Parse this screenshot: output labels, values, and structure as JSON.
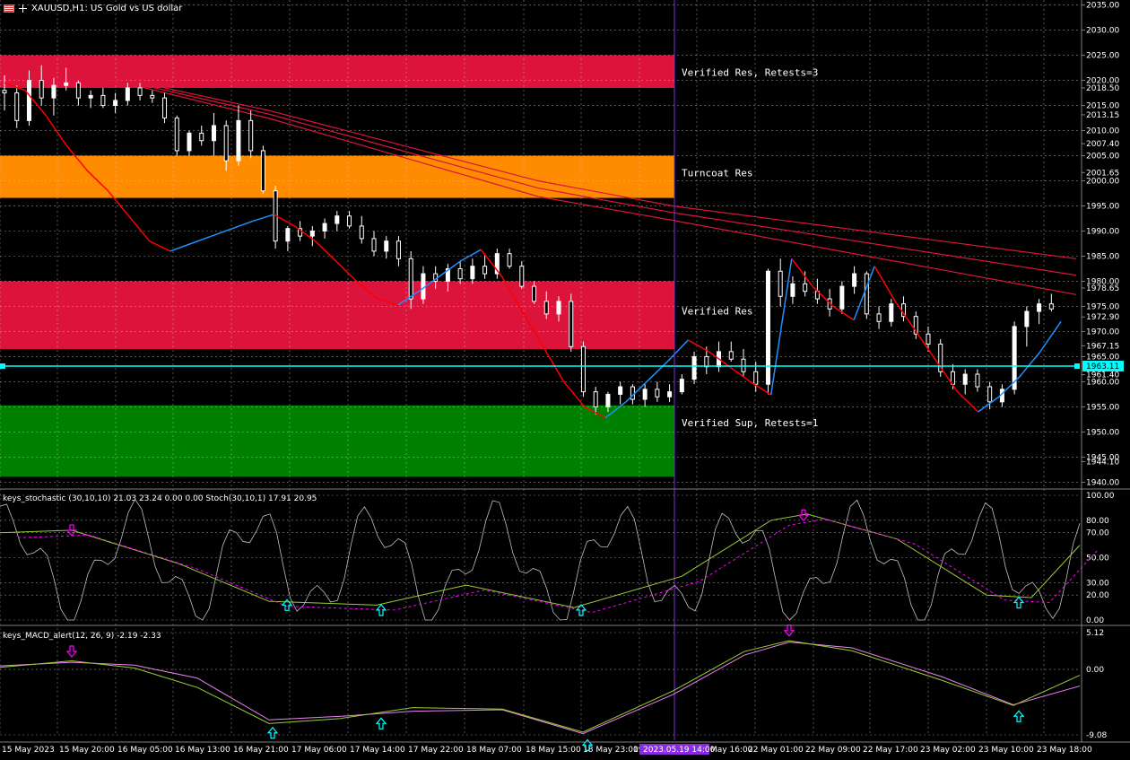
{
  "header": {
    "title": "XAUUSD,H1:  US Gold vs US dollar",
    "symbol_icon": "flag-icon",
    "cross_icon": "crosshair-icon"
  },
  "zones": [
    {
      "label": "Verified Res, Retests=3",
      "color": "#dc143c",
      "top": 2025.0,
      "bottom": 2018.5
    },
    {
      "label": "Turncoat Res",
      "color": "#ff8c00",
      "top": 2005.0,
      "bottom": 1996.6
    },
    {
      "label": "Verified Res",
      "color": "#dc143c",
      "top": 1980.0,
      "bottom": 1966.5
    },
    {
      "label": "Verified Sup, Retests=1",
      "color": "#008000",
      "top": 1955.3,
      "bottom": 1941.1
    }
  ],
  "price_axis": {
    "ticks": [
      "2035.00",
      "2030.00",
      "2025.00",
      "2020.00",
      "2018.50",
      "2015.00",
      "2013.15",
      "2010.00",
      "2007.40",
      "2005.00",
      "2001.65",
      "2000.00",
      "1995.00",
      "1990.00",
      "1985.00",
      "1980.00",
      "1978.65",
      "1975.00",
      "1972.90",
      "1970.00",
      "1967.15",
      "1965.00",
      "1961.40",
      "1960.00",
      "1955.00",
      "1950.00",
      "1945.00",
      "1944.10",
      "1940.00"
    ],
    "current_price": "1963.11",
    "current_price_value": 1963.11,
    "range": [
      1939,
      2036
    ]
  },
  "stoch_panel": {
    "title": "keys_stochastic (30,10,10) 21.03 23.24 0.00 0.00 Stoch(30,10,1) 17.91 20.95",
    "ticks": [
      "100.00",
      "80.00",
      "70.00",
      "50.00",
      "30.00",
      "20.00",
      "0.00"
    ],
    "range": [
      0,
      100
    ]
  },
  "macd_panel": {
    "title": "keys_MACD_alert(12, 26, 9) -2.19 -2.33",
    "ticks": [
      "5.12",
      "0.00",
      "-9.08"
    ],
    "range": [
      -9.08,
      5.12
    ]
  },
  "time_axis": {
    "labels": [
      "15 May 2023",
      "15 May 20:00",
      "16 May 05:00",
      "16 May 13:00",
      "16 May 21:00",
      "17 May 06:00",
      "17 May 14:00",
      "17 May 22:00",
      "18 May 07:00",
      "18 May 15:00",
      "18 May 23:00",
      "19",
      "2023.05.19 14:00",
      "May 16:00",
      "22 May 01:00",
      "22 May 09:00",
      "22 May 17:00",
      "23 May 02:00",
      "23 May 10:00",
      "23 May 18:00"
    ],
    "crosshair_label": "2023.05.19 14:00"
  },
  "colors": {
    "background": "#000000",
    "grid": "#c8c8c8",
    "candle_up": "#ffffff",
    "candle_down": "#ffffff",
    "zigzag_down": "#ff0000",
    "zigzag_up": "#1e90ff",
    "moving_average": "#dc143c",
    "current_price_line": "#00ffff",
    "crosshair": "#8a2be2",
    "stoch_main": "#c0c0c0",
    "stoch_signal": "#9acd32",
    "stoch_dotted": "#ff00ff",
    "arrow_up": "#00ffff",
    "arrow_down": "#ff00ff"
  },
  "zigzag_points": [
    [
      0,
      2019.5
    ],
    [
      1,
      2018
    ],
    [
      2,
      2013
    ],
    [
      3,
      2007
    ],
    [
      4,
      2002
    ],
    [
      5,
      1998
    ],
    [
      6,
      1993
    ],
    [
      7,
      1988
    ],
    [
      8,
      1986
    ],
    [
      9,
      1987.5
    ],
    [
      10,
      1989
    ],
    [
      11,
      1990.5
    ],
    [
      12,
      1992
    ],
    [
      13,
      1993.3
    ],
    [
      14,
      1991
    ],
    [
      15,
      1988
    ],
    [
      16,
      1984
    ],
    [
      17,
      1980
    ],
    [
      18,
      1976.5
    ],
    [
      19,
      1975.3
    ],
    [
      20,
      1978
    ],
    [
      21,
      1981
    ],
    [
      22,
      1984
    ],
    [
      23,
      1986.3
    ],
    [
      24,
      1981
    ],
    [
      25,
      1974
    ],
    [
      26,
      1967
    ],
    [
      27,
      1960
    ],
    [
      28,
      1955
    ],
    [
      29,
      1952.8
    ],
    [
      30,
      1956
    ],
    [
      31,
      1960
    ],
    [
      32,
      1964
    ],
    [
      33,
      1968.3
    ],
    [
      34,
      1966
    ],
    [
      35,
      1963
    ],
    [
      36,
      1960
    ],
    [
      37,
      1957.4
    ],
    [
      38,
      1984.5
    ],
    [
      39,
      1979
    ],
    [
      40,
      1975
    ],
    [
      41,
      1972.3
    ],
    [
      42,
      1983
    ],
    [
      43,
      1976
    ],
    [
      44,
      1970
    ],
    [
      45,
      1964
    ],
    [
      46,
      1958
    ],
    [
      47,
      1954
    ],
    [
      48,
      1957
    ],
    [
      49,
      1961
    ],
    [
      50,
      1966
    ],
    [
      51,
      1972
    ]
  ],
  "candles": [
    [
      2018.0,
      2021.0,
      2014.0,
      2017.5
    ],
    [
      2017.5,
      2019.0,
      2010.5,
      2012.0
    ],
    [
      2012.0,
      2022.0,
      2011.0,
      2020.0
    ],
    [
      2020.0,
      2023.0,
      2015.0,
      2016.5
    ],
    [
      2016.5,
      2020.5,
      2013.0,
      2019.0
    ],
    [
      2019.0,
      2022.5,
      2018.0,
      2019.5
    ],
    [
      2019.5,
      2020.0,
      2015.0,
      2016.5
    ],
    [
      2016.5,
      2018.0,
      2014.5,
      2017.0
    ],
    [
      2017.0,
      2018.5,
      2014.5,
      2015.0
    ],
    [
      2015.0,
      2017.5,
      2013.5,
      2016.0
    ],
    [
      2016.0,
      2019.5,
      2015.0,
      2018.5
    ],
    [
      2018.5,
      2019.5,
      2016.0,
      2017.0
    ],
    [
      2017.0,
      2018.0,
      2015.5,
      2016.5
    ],
    [
      2016.5,
      2017.5,
      2011.5,
      2012.5
    ],
    [
      2012.5,
      2013.0,
      2005.0,
      2006.0
    ],
    [
      2006.0,
      2010.0,
      2005.0,
      2009.5
    ],
    [
      2009.5,
      2011.0,
      2007.0,
      2008.0
    ],
    [
      2008.0,
      2013.5,
      2005.0,
      2011.0
    ],
    [
      2011.0,
      2012.0,
      2002.0,
      2004.0
    ],
    [
      2004.0,
      2015.0,
      2003.0,
      2012.0
    ],
    [
      2012.0,
      2014.0,
      2004.5,
      2006.0
    ],
    [
      2006.0,
      2007.0,
      1997.5,
      1998.0
    ],
    [
      1998.0,
      1999.0,
      1986.5,
      1988.0
    ],
    [
      1988.0,
      1991.0,
      1986.0,
      1990.5
    ],
    [
      1990.5,
      1992.0,
      1988.0,
      1989.0
    ],
    [
      1989.0,
      1991.0,
      1987.0,
      1990.0
    ],
    [
      1990.0,
      1992.5,
      1988.5,
      1991.5
    ],
    [
      1991.5,
      1994.0,
      1990.0,
      1993.0
    ],
    [
      1993.0,
      1994.0,
      1990.5,
      1991.0
    ],
    [
      1991.0,
      1993.0,
      1987.5,
      1988.5
    ],
    [
      1988.5,
      1990.0,
      1985.0,
      1986.0
    ],
    [
      1986.0,
      1989.0,
      1984.5,
      1988.0
    ],
    [
      1988.0,
      1989.0,
      1983.0,
      1984.5
    ],
    [
      1984.5,
      1986.0,
      1974.5,
      1976.5
    ],
    [
      1976.5,
      1983.0,
      1975.5,
      1981.5
    ],
    [
      1981.5,
      1983.0,
      1978.5,
      1980.0
    ],
    [
      1980.0,
      1983.5,
      1978.0,
      1982.5
    ],
    [
      1982.5,
      1984.0,
      1979.5,
      1980.5
    ],
    [
      1980.5,
      1984.5,
      1979.5,
      1983.0
    ],
    [
      1983.0,
      1985.5,
      1980.5,
      1981.5
    ],
    [
      1981.5,
      1986.5,
      1980.5,
      1985.5
    ],
    [
      1985.5,
      1986.5,
      1982.5,
      1983.0
    ],
    [
      1983.0,
      1984.0,
      1978.5,
      1979.0
    ],
    [
      1979.0,
      1980.0,
      1975.5,
      1976.0
    ],
    [
      1976.0,
      1978.0,
      1972.5,
      1973.5
    ],
    [
      1973.5,
      1977.0,
      1972.0,
      1976.0
    ],
    [
      1976.0,
      1977.5,
      1966.0,
      1967.0
    ],
    [
      1967.0,
      1968.0,
      1957.0,
      1958.0
    ],
    [
      1958.0,
      1959.0,
      1953.5,
      1955.0
    ],
    [
      1955.0,
      1958.0,
      1954.0,
      1957.5
    ],
    [
      1957.5,
      1960.0,
      1955.5,
      1959.0
    ],
    [
      1959.0,
      1959.5,
      1955.5,
      1956.5
    ],
    [
      1956.5,
      1959.5,
      1955.0,
      1958.5
    ],
    [
      1958.5,
      1960.0,
      1956.0,
      1957.0
    ],
    [
      1957.0,
      1959.5,
      1956.0,
      1958.0
    ],
    [
      1958.0,
      1961.5,
      1957.5,
      1960.5
    ],
    [
      1960.5,
      1966.0,
      1959.5,
      1965.0
    ],
    [
      1965.0,
      1967.0,
      1961.5,
      1963.0
    ],
    [
      1963.0,
      1968.0,
      1962.0,
      1966.0
    ],
    [
      1966.0,
      1968.0,
      1964.0,
      1964.5
    ],
    [
      1964.5,
      1966.5,
      1961.0,
      1962.0
    ],
    [
      1962.0,
      1964.0,
      1958.0,
      1959.5
    ],
    [
      1959.5,
      1982.5,
      1957.5,
      1982.0
    ],
    [
      1982.0,
      1984.5,
      1975.0,
      1977.0
    ],
    [
      1977.0,
      1981.0,
      1975.5,
      1979.5
    ],
    [
      1979.5,
      1982.0,
      1977.0,
      1978.0
    ],
    [
      1978.0,
      1980.5,
      1975.5,
      1976.5
    ],
    [
      1976.5,
      1978.5,
      1973.0,
      1974.5
    ],
    [
      1974.5,
      1980.0,
      1973.5,
      1979.0
    ],
    [
      1979.0,
      1983.0,
      1977.5,
      1981.5
    ],
    [
      1981.5,
      1982.0,
      1972.5,
      1973.5
    ],
    [
      1973.5,
      1975.0,
      1970.5,
      1972.0
    ],
    [
      1972.0,
      1976.5,
      1971.0,
      1975.5
    ],
    [
      1975.5,
      1977.0,
      1972.0,
      1973.0
    ],
    [
      1973.0,
      1974.0,
      1968.5,
      1969.5
    ],
    [
      1969.5,
      1971.0,
      1966.0,
      1967.5
    ],
    [
      1967.5,
      1968.5,
      1961.0,
      1962.0
    ],
    [
      1962.0,
      1963.5,
      1958.5,
      1959.5
    ],
    [
      1959.5,
      1962.5,
      1957.5,
      1961.5
    ],
    [
      1961.5,
      1962.5,
      1958.0,
      1959.0
    ],
    [
      1959.0,
      1960.0,
      1954.5,
      1956.0
    ],
    [
      1956.0,
      1959.5,
      1955.0,
      1958.5
    ],
    [
      1958.5,
      1972.0,
      1957.5,
      1971.0
    ],
    [
      1971.0,
      1975.0,
      1967.0,
      1974.0
    ],
    [
      1974.0,
      1976.5,
      1971.5,
      1975.5
    ],
    [
      1975.5,
      1977.5,
      1974.0,
      1974.5
    ]
  ]
}
